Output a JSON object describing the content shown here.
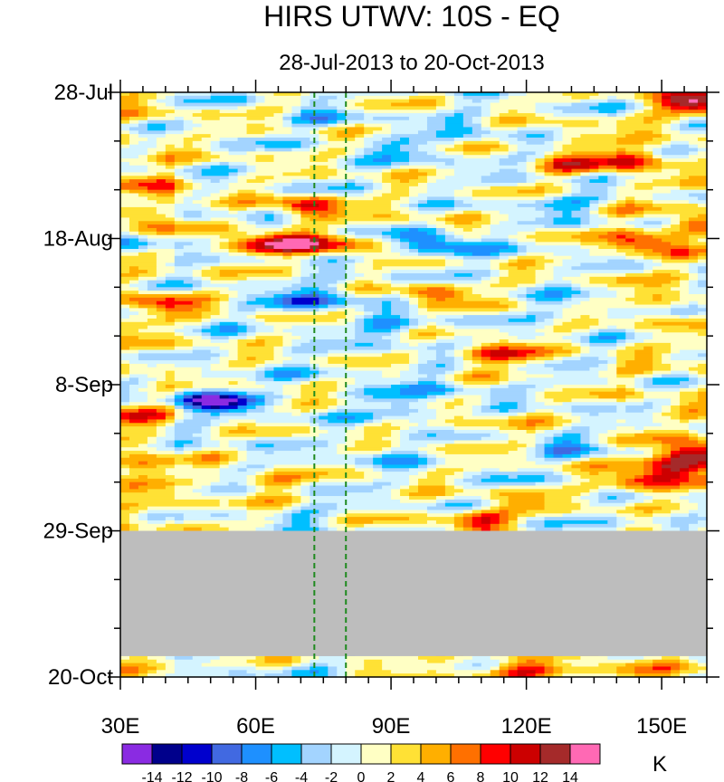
{
  "chart_data": {
    "type": "heatmap",
    "title": "HIRS UTWV: 10S - EQ",
    "subtitle": "28-Jul-2013 to 20-Oct-2013",
    "xlabel": "",
    "ylabel": "",
    "x_range": [
      30,
      160
    ],
    "x_ticks": [
      30,
      60,
      90,
      120,
      150
    ],
    "x_tick_labels": [
      "30E",
      "60E",
      "90E",
      "120E",
      "150E"
    ],
    "x_minor_step": 5,
    "y_range_days": [
      0,
      84
    ],
    "y_ticks_days": [
      0,
      21,
      42,
      63,
      84
    ],
    "y_tick_labels": [
      "28-Jul",
      "18-Aug",
      "8-Sep",
      "29-Sep",
      "20-Oct"
    ],
    "y_minor_step_days": 7,
    "missing_data_days": [
      63,
      81
    ],
    "missing_color": "#bdbdbd",
    "reference_lines_lon": [
      73,
      80
    ],
    "reference_line_color": "#1f8a1f",
    "colorbar": {
      "units": "K",
      "levels": [
        -14,
        -12,
        -10,
        -8,
        -6,
        -4,
        -2,
        0,
        2,
        4,
        6,
        8,
        10,
        12,
        14
      ],
      "level_labels": [
        "-14",
        "-12",
        "-10",
        "-8",
        "-6",
        "-4",
        "-2",
        "0",
        "2",
        "4",
        "6",
        "8",
        "10",
        "12",
        "14"
      ],
      "colors": [
        "#8a2be2",
        "#00008b",
        "#0000cd",
        "#4169e1",
        "#1e90ff",
        "#00bfff",
        "#a3d4ff",
        "#d4f4ff",
        "#ffffc4",
        "#ffe135",
        "#ffaf00",
        "#ff7000",
        "#ff0000",
        "#cc0000",
        "#a52a2a",
        "#ff69b4"
      ]
    },
    "features": [
      {
        "lon": 158,
        "day": 1.5,
        "value": 12
      },
      {
        "lon": 76,
        "day": 4,
        "value": -3
      },
      {
        "lon": 108,
        "day": 5,
        "value": -3
      },
      {
        "lon": 95,
        "day": 8,
        "value": -5
      },
      {
        "lon": 130,
        "day": 6,
        "value": 3
      },
      {
        "lon": 142,
        "day": 9.5,
        "value": 10
      },
      {
        "lon": 130,
        "day": 10.5,
        "value": 6
      },
      {
        "lon": 40,
        "day": 14,
        "value": 5
      },
      {
        "lon": 72,
        "day": 16.5,
        "value": 10
      },
      {
        "lon": 35,
        "day": 18,
        "value": 4
      },
      {
        "lon": 128,
        "day": 16,
        "value": -4
      },
      {
        "lon": 68,
        "day": 21.5,
        "value": 10
      },
      {
        "lon": 60,
        "day": 22,
        "value": 8
      },
      {
        "lon": 80,
        "day": 22,
        "value": 6
      },
      {
        "lon": 34,
        "day": 22.5,
        "value": -6
      },
      {
        "lon": 104,
        "day": 23,
        "value": -3
      },
      {
        "lon": 99,
        "day": 21.5,
        "value": -8
      },
      {
        "lon": 146,
        "day": 21.5,
        "value": 10
      },
      {
        "lon": 158,
        "day": 19,
        "value": 6
      },
      {
        "lon": 95,
        "day": 17,
        "value": 2
      },
      {
        "lon": 40,
        "day": 30.5,
        "value": 7
      },
      {
        "lon": 100,
        "day": 29,
        "value": 7
      },
      {
        "lon": 70,
        "day": 30,
        "value": -6
      },
      {
        "lon": 78,
        "day": 29,
        "value": -5
      },
      {
        "lon": 90,
        "day": 34,
        "value": -6
      },
      {
        "lon": 130,
        "day": 31,
        "value": -3
      },
      {
        "lon": 150,
        "day": 30,
        "value": 3
      },
      {
        "lon": 118,
        "day": 38,
        "value": 6
      },
      {
        "lon": 110,
        "day": 37.5,
        "value": 5
      },
      {
        "lon": 47,
        "day": 44,
        "value": -6
      },
      {
        "lon": 53,
        "day": 44.5,
        "value": -10
      },
      {
        "lon": 75,
        "day": 40,
        "value": -2
      },
      {
        "lon": 100,
        "day": 42,
        "value": -4
      },
      {
        "lon": 92,
        "day": 45,
        "value": -6
      },
      {
        "lon": 32,
        "day": 47,
        "value": 5
      },
      {
        "lon": 35,
        "day": 54,
        "value": 6
      },
      {
        "lon": 153,
        "day": 54,
        "value": 11
      },
      {
        "lon": 158,
        "day": 52,
        "value": 13
      },
      {
        "lon": 145,
        "day": 56,
        "value": 8
      },
      {
        "lon": 62,
        "day": 56,
        "value": 5
      },
      {
        "lon": 110,
        "day": 48,
        "value": 3
      },
      {
        "lon": 130,
        "day": 51,
        "value": -4
      },
      {
        "lon": 88,
        "day": 52,
        "value": -3
      },
      {
        "lon": 109,
        "day": 61.5,
        "value": 9
      },
      {
        "lon": 120,
        "day": 59,
        "value": 4
      },
      {
        "lon": 150,
        "day": 61,
        "value": -4
      },
      {
        "lon": 45,
        "day": 60,
        "value": 3
      },
      {
        "lon": 70,
        "day": 61,
        "value": -2
      },
      {
        "lon": 122,
        "day": 83,
        "value": 10
      },
      {
        "lon": 70,
        "day": 82.5,
        "value": -2
      },
      {
        "lon": 140,
        "day": 83,
        "value": 4
      },
      {
        "lon": 40,
        "day": 83,
        "value": 3
      },
      {
        "lon": 105,
        "day": 82,
        "value": 5
      }
    ]
  }
}
